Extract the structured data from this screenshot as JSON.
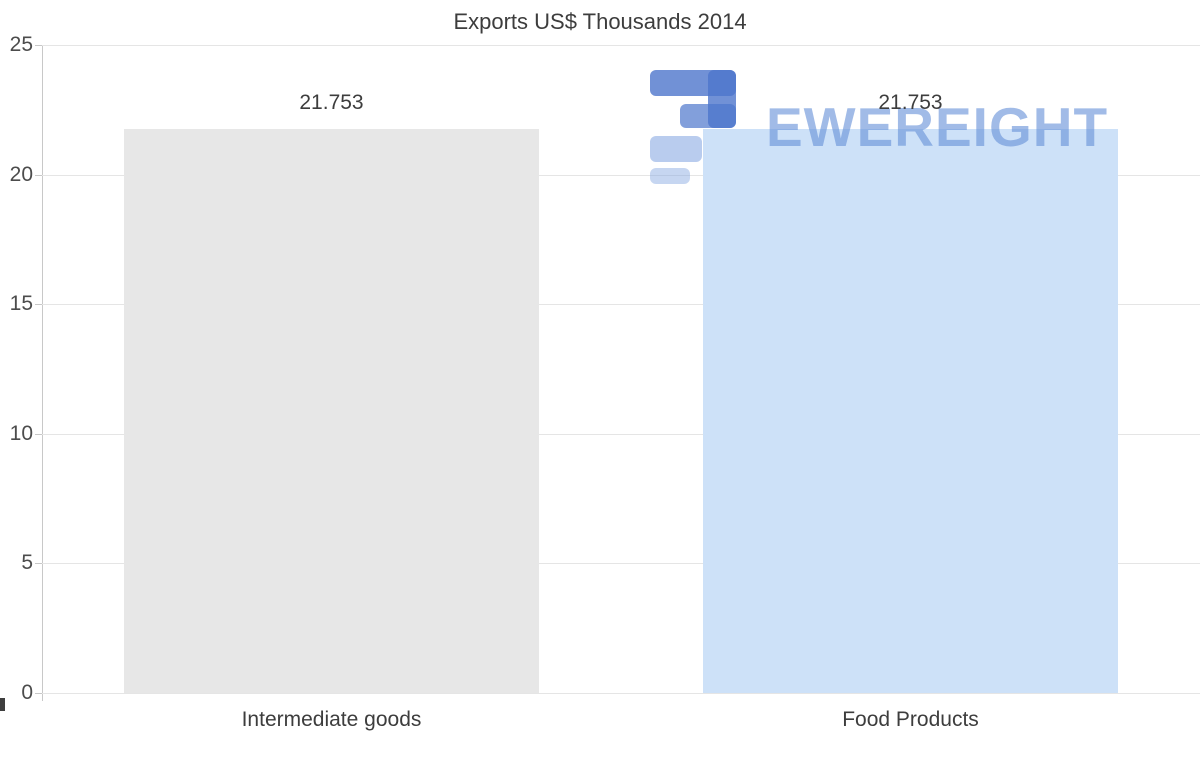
{
  "chart_data": {
    "type": "bar",
    "title": "Exports US$ Thousands 2014",
    "categories": [
      "Intermediate goods",
      "Food Products"
    ],
    "values": [
      21.753,
      21.753
    ],
    "value_labels": [
      "21.753",
      "21.753"
    ],
    "bar_colors": [
      "#e7e7e7",
      "#cde1f8"
    ],
    "xlabel": "",
    "ylabel": "",
    "ylim": [
      0,
      25
    ],
    "yticks": [
      0,
      5,
      10,
      15,
      20,
      25
    ],
    "grid": true,
    "legend": false
  },
  "watermark": {
    "text": "EWEREIGHT",
    "icon": "blocky-3-logo",
    "color": "#6891d8"
  },
  "colors": {
    "background": "#ffffff",
    "title_text": "#3d3d3d",
    "tick_label_text": "#4c4c4c",
    "category_label_text": "#3d3d3d",
    "value_label_text": "#3d3d3d",
    "gridline": "#e5e5e5",
    "axis_line": "#c8c8c8",
    "bar_gray": "#e7e7e7",
    "bar_blue": "#cde1f8",
    "watermark_blue": "#6891d8"
  }
}
